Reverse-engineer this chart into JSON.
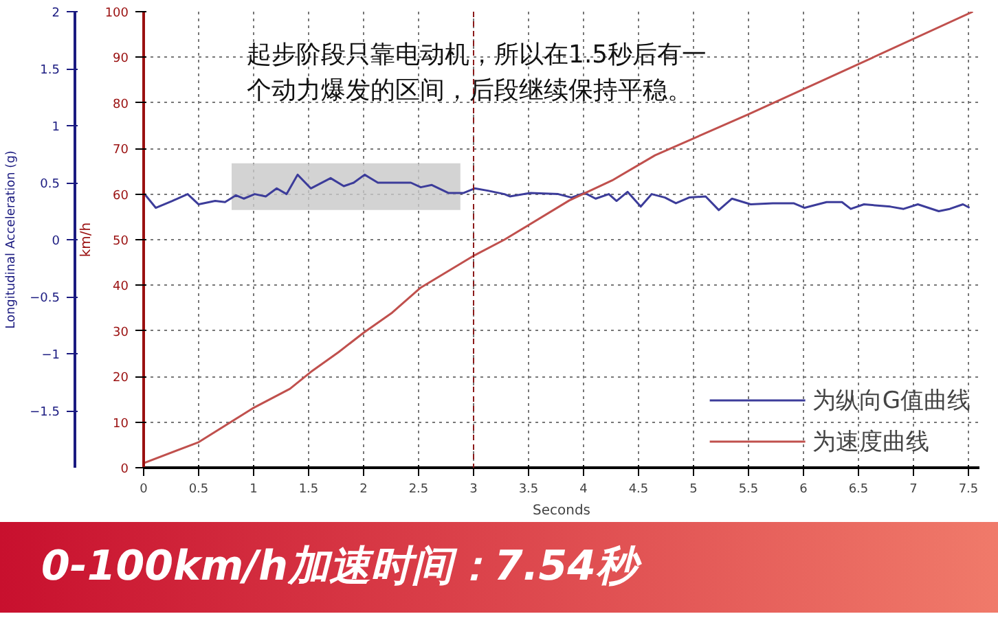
{
  "chart_data": {
    "type": "line",
    "xlabel": "Seconds",
    "ylabel": "km/h",
    "y2label": "Longitudinal Acceleration (g)",
    "annotations": [
      "起步阶段只靠电动机，所以在1.5秒后有一个动力爆发的区间，后段继续保持平稳。",
      "0-100km/h加速时间：7.54秒"
    ],
    "xlim": [
      0,
      7.6
    ],
    "xticks": [
      0,
      0.5,
      1,
      1.5,
      2,
      2.5,
      3,
      3.5,
      4,
      4.5,
      5,
      5.5,
      6,
      6.5,
      7,
      7.5
    ],
    "ylim": [
      0,
      100
    ],
    "yticks": [
      0,
      10,
      20,
      30,
      40,
      50,
      60,
      70,
      80,
      90,
      100
    ],
    "y2lim": [
      -2,
      2
    ],
    "y2ticks": [
      -1.5,
      -1,
      -0.5,
      0,
      0.5,
      1,
      1.5,
      2
    ],
    "grid": true,
    "legend": "bottom right",
    "marker": "none",
    "line_style": "solid",
    "ref_lines": [
      {
        "axis": "x",
        "value": 3,
        "label": null,
        "color": "#8b1a1a",
        "line_style": "dashed"
      }
    ],
    "bands": [
      {
        "axis": "x",
        "from": 0.8,
        "to": 2.88,
        "label": null,
        "color": "#c8c8c8"
      }
    ],
    "series": [
      {
        "name": "为纵向G值曲线",
        "color": "#3c3c9a",
        "axis": "y2",
        "x": [
          0,
          0.11,
          0.26,
          0.4,
          0.5,
          0.65,
          0.74,
          0.84,
          0.91,
          1.01,
          1.11,
          1.21,
          1.3,
          1.4,
          1.52,
          1.7,
          1.82,
          1.91,
          2.01,
          2.13,
          2.3,
          2.43,
          2.52,
          2.62,
          2.77,
          2.91,
          3.01,
          3.13,
          3.28,
          3.33,
          3.52,
          3.77,
          3.89,
          4.01,
          4.11,
          4.23,
          4.3,
          4.4,
          4.52,
          4.62,
          4.74,
          4.84,
          4.96,
          5.11,
          5.23,
          5.35,
          5.52,
          5.72,
          5.91,
          6.01,
          6.21,
          6.35,
          6.43,
          6.55,
          6.79,
          6.91,
          7.04,
          7.23,
          7.33,
          7.45,
          7.51
        ],
        "values": [
          0.41,
          0.28,
          0.34,
          0.4,
          0.31,
          0.34,
          0.33,
          0.39,
          0.36,
          0.4,
          0.38,
          0.45,
          0.4,
          0.57,
          0.45,
          0.54,
          0.47,
          0.5,
          0.57,
          0.5,
          0.5,
          0.5,
          0.46,
          0.48,
          0.41,
          0.41,
          0.45,
          0.43,
          0.4,
          0.38,
          0.41,
          0.4,
          0.37,
          0.41,
          0.36,
          0.4,
          0.34,
          0.42,
          0.29,
          0.4,
          0.37,
          0.32,
          0.37,
          0.38,
          0.26,
          0.36,
          0.31,
          0.32,
          0.32,
          0.28,
          0.33,
          0.33,
          0.27,
          0.31,
          0.29,
          0.27,
          0.31,
          0.25,
          0.27,
          0.31,
          0.28
        ]
      },
      {
        "name": "为速度曲线",
        "color": "#c0504d",
        "x": [
          0,
          0.5,
          0.99,
          1.33,
          1.52,
          1.77,
          2.0,
          2.26,
          2.52,
          3.01,
          3.28,
          3.87,
          4.26,
          4.65,
          5.5,
          6.5,
          7.54
        ],
        "values": [
          1,
          5.6,
          13,
          17.3,
          21,
          25.3,
          29.6,
          34,
          39.5,
          46.6,
          50,
          58.6,
          63,
          68.5,
          77.5,
          88.5,
          100
        ]
      }
    ]
  }
}
